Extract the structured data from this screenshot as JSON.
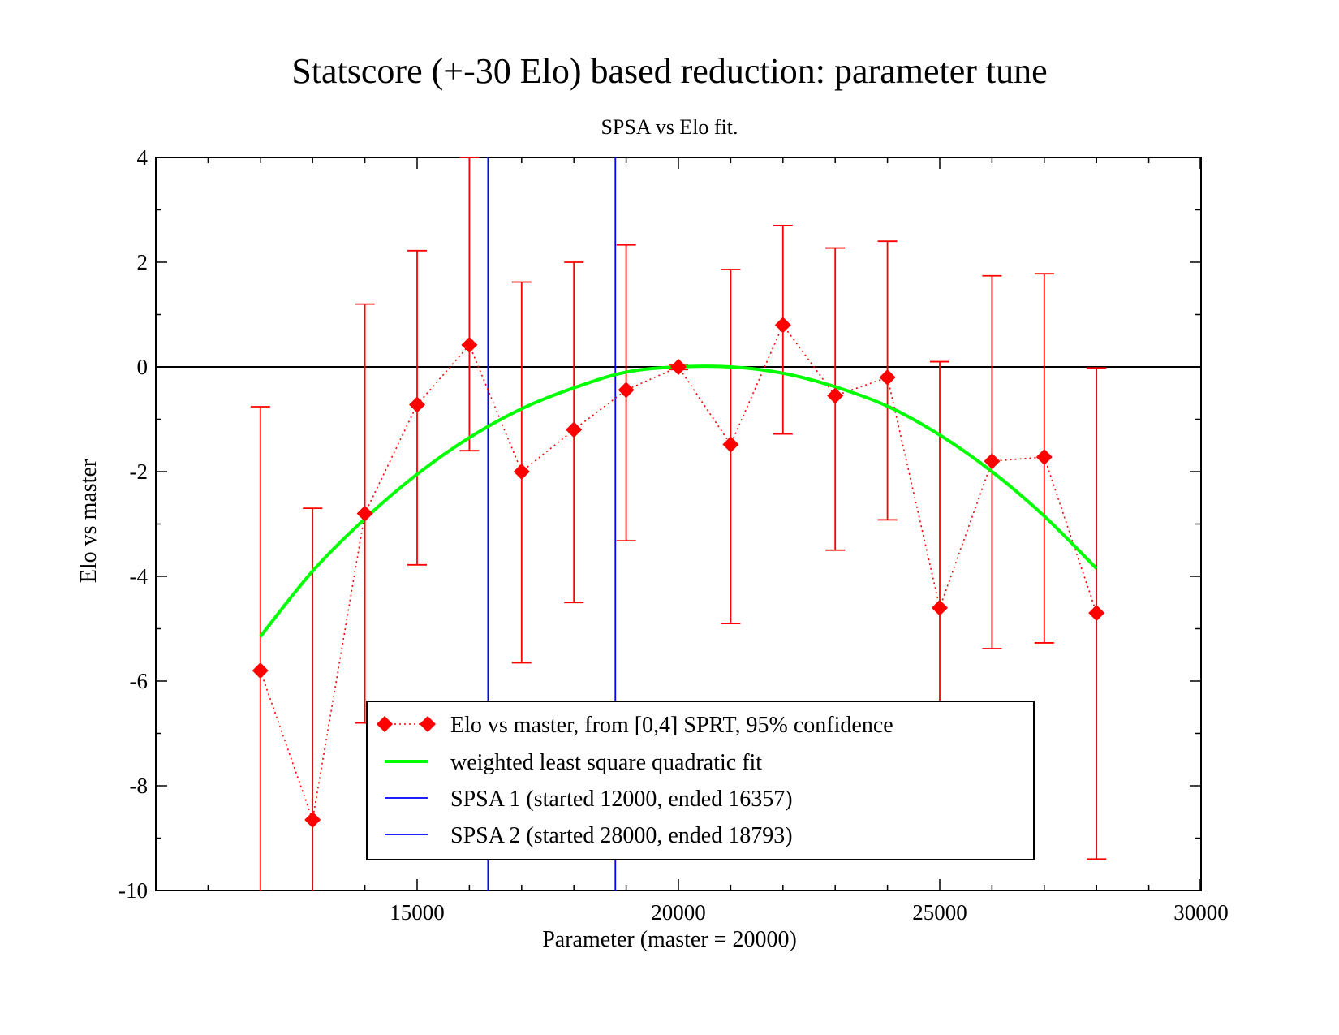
{
  "chart_data": {
    "type": "scatter",
    "title": "Statscore (+-30 Elo) based reduction: parameter tune",
    "subtitle": "SPSA vs Elo fit.",
    "xlabel": "Parameter (master = 20000)",
    "ylabel": "Elo vs master",
    "xlim": [
      10000,
      30000
    ],
    "ylim": [
      -10,
      4
    ],
    "x_ticks": [
      15000,
      20000,
      25000,
      30000
    ],
    "x_tick_labels": [
      "15000",
      "20000",
      "25000",
      "30000"
    ],
    "y_ticks": [
      -10,
      -8,
      -6,
      -4,
      -2,
      0,
      2,
      4
    ],
    "y_tick_labels": [
      "-10",
      "-8",
      "-6",
      "-4",
      "-2",
      "0",
      "2",
      "4"
    ],
    "grid": false,
    "reference_line_y": 0,
    "legend_position": "bottom-center",
    "series": [
      {
        "name": "Elo vs master, from [0,4] SPRT, 95% confidence",
        "kind": "points-with-error-bars",
        "color": "#ff0000",
        "x": [
          12000,
          13000,
          14000,
          15000,
          16000,
          17000,
          18000,
          19000,
          20000,
          21000,
          22000,
          23000,
          24000,
          25000,
          26000,
          27000,
          28000
        ],
        "y": [
          -5.8,
          -8.65,
          -2.8,
          -0.72,
          0.42,
          -2.0,
          -1.2,
          -0.44,
          0.0,
          -1.48,
          0.8,
          -0.55,
          -0.2,
          -4.6,
          -1.8,
          -1.72,
          -4.7
        ],
        "y_low": [
          -10.0,
          -10.0,
          -6.8,
          -3.78,
          -1.6,
          -5.65,
          -4.5,
          -3.32,
          -0.05,
          -4.9,
          -1.28,
          -3.5,
          -2.92,
          -6.5,
          -5.38,
          -5.27,
          -9.4
        ],
        "y_high": [
          -0.76,
          -2.7,
          1.2,
          2.22,
          4.0,
          1.62,
          2.0,
          2.33,
          0.03,
          1.86,
          2.7,
          2.27,
          2.4,
          0.1,
          1.74,
          1.78,
          -0.02
        ]
      },
      {
        "name": "weighted least square quadratic fit",
        "kind": "line",
        "color": "#00ff00",
        "x": [
          12000,
          13000,
          14000,
          15000,
          16000,
          17000,
          18000,
          19000,
          20000,
          21000,
          22000,
          23000,
          24000,
          25000,
          26000,
          27000,
          28000
        ],
        "y": [
          -5.15,
          -3.9,
          -2.9,
          -2.05,
          -1.35,
          -0.8,
          -0.4,
          -0.1,
          0.0,
          0.0,
          -0.12,
          -0.38,
          -0.75,
          -1.3,
          -2.0,
          -2.85,
          -3.85
        ]
      },
      {
        "name": "SPSA 1 (started 12000, ended 16357)",
        "kind": "vertical-line",
        "color": "#0000ff",
        "x": 16357
      },
      {
        "name": "SPSA 2 (started 28000, ended 18793)",
        "kind": "vertical-line",
        "color": "#0000ff",
        "x": 18793
      }
    ]
  }
}
